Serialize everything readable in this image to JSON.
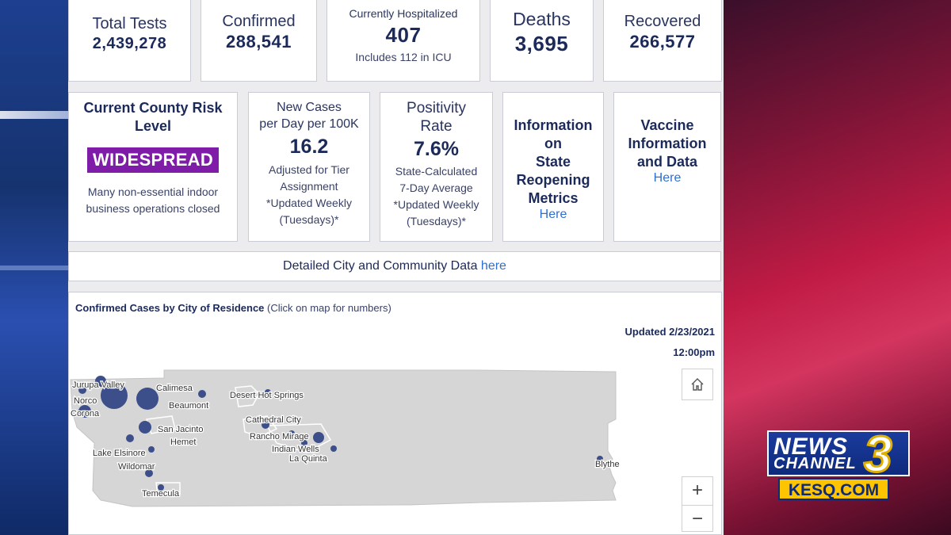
{
  "stats": {
    "total_tests": {
      "label": "Total Tests",
      "value": "2,439,278"
    },
    "confirmed": {
      "label": "Confirmed",
      "value": "288,541"
    },
    "hospitalized": {
      "label": "Currently Hospitalized",
      "value": "407",
      "note": "Includes 112 in ICU"
    },
    "deaths": {
      "label": "Deaths",
      "value": "3,695"
    },
    "recovered": {
      "label": "Recovered",
      "value": "266,577"
    }
  },
  "risk": {
    "title_line1": "Current County Risk",
    "title_line2": "Level",
    "badge": "WIDESPREAD",
    "badge_color": "#7f1ca8",
    "desc_line1": "Many non-essential indoor",
    "desc_line2": "business operations closed"
  },
  "new_cases": {
    "label_line1": "New Cases",
    "label_line2": "per Day per 100K",
    "value": "16.2",
    "note_line1": "Adjusted for Tier",
    "note_line2": "Assignment",
    "note_line3": "*Updated Weekly",
    "note_line4": "(Tuesdays)*"
  },
  "positivity": {
    "label_line1": "Positivity",
    "label_line2": "Rate",
    "value": "7.6%",
    "note_line1": "State-Calculated",
    "note_line2": "7-Day Average",
    "note_line3": "*Updated Weekly",
    "note_line4": "(Tuesdays)*"
  },
  "reopening": {
    "line1": "Information",
    "line2": "on",
    "line3": "State",
    "line4": "Reopening",
    "line5": "Metrics",
    "link": "Here"
  },
  "vaccine": {
    "line1": "Vaccine",
    "line2": "Information",
    "line3": "and Data",
    "link": "Here"
  },
  "detailed": {
    "text": "Detailed City and Community Data",
    "link": "here"
  },
  "map": {
    "title_bold": "Confirmed Cases by City of Residence",
    "title_note": "(Click on map for numbers)",
    "updated_date": "Updated 2/23/2021",
    "updated_time": "12:00pm",
    "zoom_in": "+",
    "zoom_out": "−",
    "home_icon": "home-icon",
    "cities": [
      "Jurupa Valley",
      "Norco",
      "Corona",
      "Calimesa",
      "Beaumont",
      "San Jacinto",
      "Hemet",
      "Lake Elsinore",
      "Wildomar",
      "Temecula",
      "Desert Hot Springs",
      "Cathedral City",
      "Rancho Mirage",
      "Indian Wells",
      "La Quinta",
      "Blythe"
    ]
  },
  "logo": {
    "news": "NEWS",
    "channel": "CHANNEL",
    "three": "3",
    "url": "KESQ.COM"
  }
}
